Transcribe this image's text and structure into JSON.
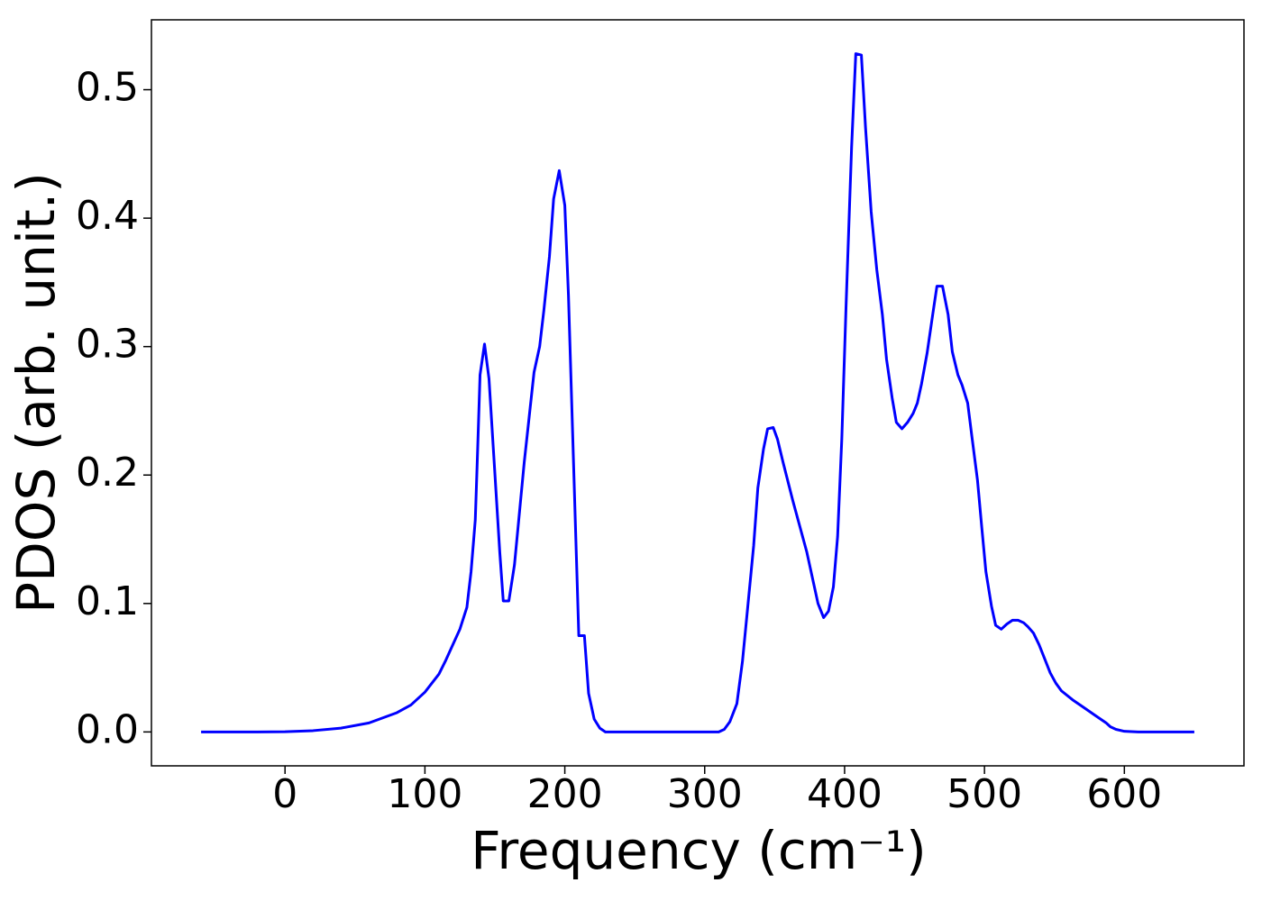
{
  "chart_data": {
    "type": "line",
    "x_label": "Frequency (cm⁻¹)",
    "y_label": "PDOS (arb. unit.)",
    "xlim": [
      -95.5,
      685.5
    ],
    "ylim": [
      -0.0264,
      0.5544
    ],
    "xticks": [
      0,
      100,
      200,
      300,
      400,
      500,
      600
    ],
    "yticks": [
      {
        "value": 0,
        "label": "0.0"
      },
      0.1,
      0.2,
      0.3,
      0.4,
      0.5
    ],
    "x": [
      -60,
      -20,
      0,
      20,
      40,
      60,
      80,
      90,
      100,
      110,
      115,
      120,
      125,
      130,
      133,
      136,
      137.7,
      139.4,
      142.6,
      145.8,
      153.5,
      156,
      160,
      164,
      171,
      175,
      178,
      182,
      185,
      189,
      192,
      196,
      200,
      202.6,
      206.5,
      210,
      214,
      217,
      221,
      225,
      229,
      310,
      314,
      318,
      323,
      327,
      331,
      335,
      338,
      342,
      345,
      349,
      352,
      356,
      363,
      368,
      373,
      377,
      381,
      385,
      388.5,
      392,
      395,
      398,
      401,
      405,
      408,
      412,
      415,
      419,
      423,
      427,
      430,
      434,
      437,
      441,
      445,
      449,
      452,
      455,
      459,
      463,
      466,
      470,
      474,
      477,
      481,
      484,
      488,
      491,
      495,
      498,
      501,
      505,
      508,
      512,
      516,
      520,
      524,
      528,
      531,
      535,
      539,
      543,
      547,
      551,
      555,
      563,
      571,
      579,
      587,
      590,
      594,
      600,
      610,
      650
    ],
    "series": [
      {
        "name": "PDOS",
        "color": "#0000ff",
        "values": [
          0,
          0,
          0.0002,
          0.001,
          0.003,
          0.007,
          0.015,
          0.021,
          0.031,
          0.045,
          0.056,
          0.068,
          0.08,
          0.097,
          0.125,
          0.165,
          0.22,
          0.278,
          0.302,
          0.275,
          0.14,
          0.102,
          0.102,
          0.13,
          0.21,
          0.25,
          0.28,
          0.3,
          0.328,
          0.37,
          0.415,
          0.437,
          0.41,
          0.34,
          0.2,
          0.075,
          0.075,
          0.03,
          0.01,
          0.003,
          0,
          0,
          0.002,
          0.008,
          0.022,
          0.055,
          0.1,
          0.145,
          0.19,
          0.22,
          0.236,
          0.237,
          0.228,
          0.21,
          0.18,
          0.16,
          0.14,
          0.12,
          0.1,
          0.089,
          0.094,
          0.113,
          0.152,
          0.228,
          0.33,
          0.455,
          0.528,
          0.527,
          0.47,
          0.405,
          0.36,
          0.325,
          0.29,
          0.26,
          0.241,
          0.236,
          0.241,
          0.248,
          0.256,
          0.271,
          0.295,
          0.325,
          0.347,
          0.347,
          0.325,
          0.296,
          0.278,
          0.27,
          0.256,
          0.23,
          0.196,
          0.16,
          0.125,
          0.098,
          0.083,
          0.08,
          0.084,
          0.087,
          0.087,
          0.085,
          0.082,
          0.077,
          0.068,
          0.057,
          0.046,
          0.038,
          0.032,
          0.025,
          0.019,
          0.013,
          0.007,
          0.004,
          0.002,
          0.0005,
          0,
          0
        ]
      }
    ]
  }
}
